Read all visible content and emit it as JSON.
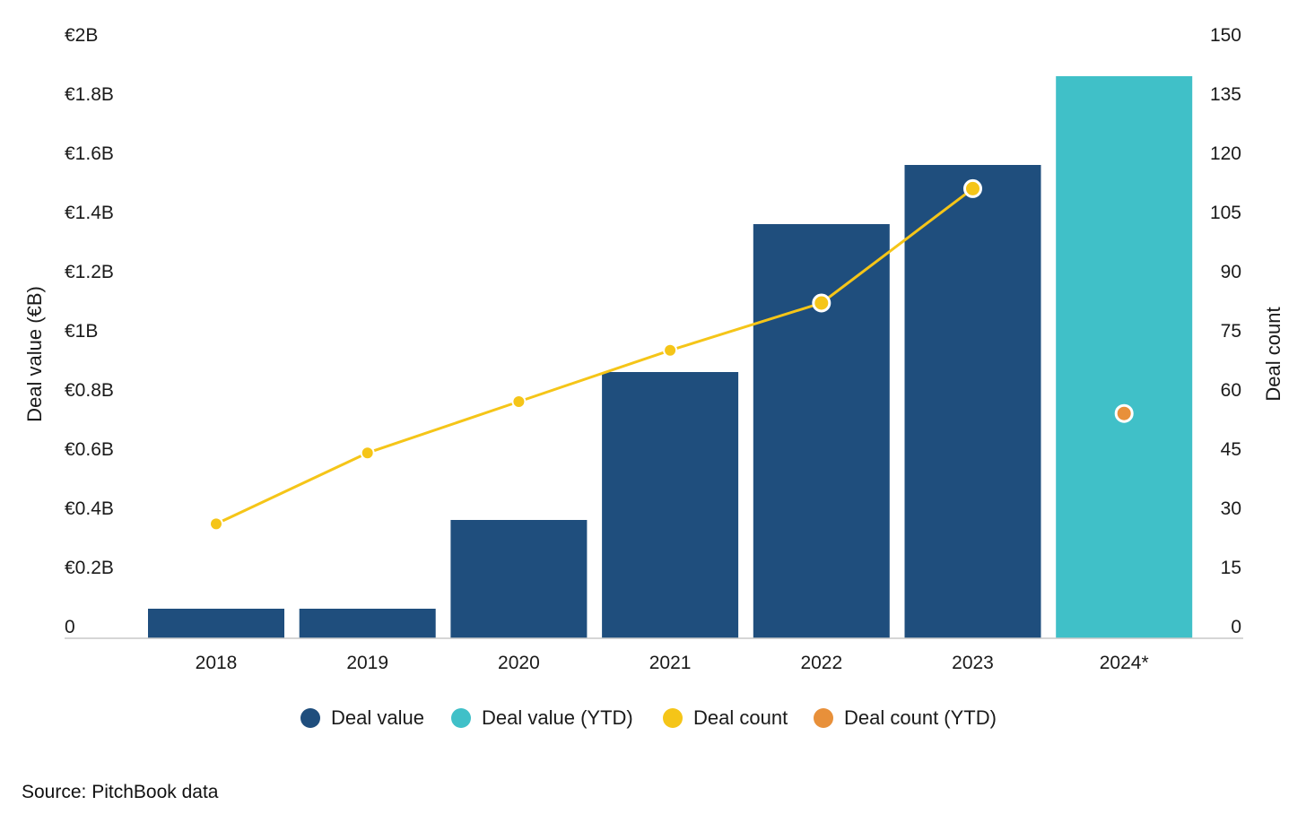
{
  "chart_data": {
    "type": "bar",
    "categories": [
      "2018",
      "2019",
      "2020",
      "2021",
      "2022",
      "2023",
      "2024*"
    ],
    "series": [
      {
        "name": "Deal value",
        "axis": "left",
        "unit": "€B",
        "values": [
          0.1,
          0.1,
          0.4,
          0.9,
          1.4,
          1.6,
          null
        ],
        "color": "#1f4e7d"
      },
      {
        "name": "Deal value (YTD)",
        "axis": "left",
        "unit": "€B",
        "values": [
          null,
          null,
          null,
          null,
          null,
          null,
          1.9
        ],
        "color": "#40c0c8"
      },
      {
        "name": "Deal count",
        "type": "line",
        "axis": "right",
        "values": [
          29,
          47,
          60,
          73,
          85,
          114,
          null
        ],
        "color": "#f5c518"
      },
      {
        "name": "Deal count (YTD)",
        "type": "scatter",
        "axis": "right",
        "values": [
          null,
          null,
          null,
          null,
          null,
          null,
          57
        ],
        "color": "#e8903a"
      }
    ],
    "y_left": {
      "label": "Deal value (€B)",
      "ylim": [
        0,
        2
      ],
      "ticks": [
        0,
        0.2,
        0.4,
        0.6,
        0.8,
        1,
        1.2,
        1.4,
        1.6,
        1.8,
        2
      ],
      "tick_labels": [
        "0",
        "€0.2B",
        "€0.4B",
        "€0.6B",
        "€0.8B",
        "€1B",
        "€1.2B",
        "€1.4B",
        "€1.6B",
        "€1.8B",
        "€2B"
      ]
    },
    "y_right": {
      "label": "Deal count",
      "ylim": [
        0,
        150
      ],
      "ticks": [
        0,
        15,
        30,
        45,
        60,
        75,
        90,
        105,
        120,
        135,
        150
      ],
      "tick_labels": [
        "0",
        "15",
        "30",
        "45",
        "60",
        "75",
        "90",
        "105",
        "120",
        "135",
        "150"
      ]
    },
    "highlighted_points": [
      "2022",
      "2023"
    ],
    "legend": {
      "position": "bottom",
      "items": [
        {
          "label": "Deal value",
          "color": "#1f4e7d"
        },
        {
          "label": "Deal value (YTD)",
          "color": "#40c0c8"
        },
        {
          "label": "Deal count",
          "color": "#f5c518"
        },
        {
          "label": "Deal count (YTD)",
          "color": "#e8903a"
        }
      ]
    },
    "grid": false
  },
  "source_text": "Source: PitchBook data"
}
